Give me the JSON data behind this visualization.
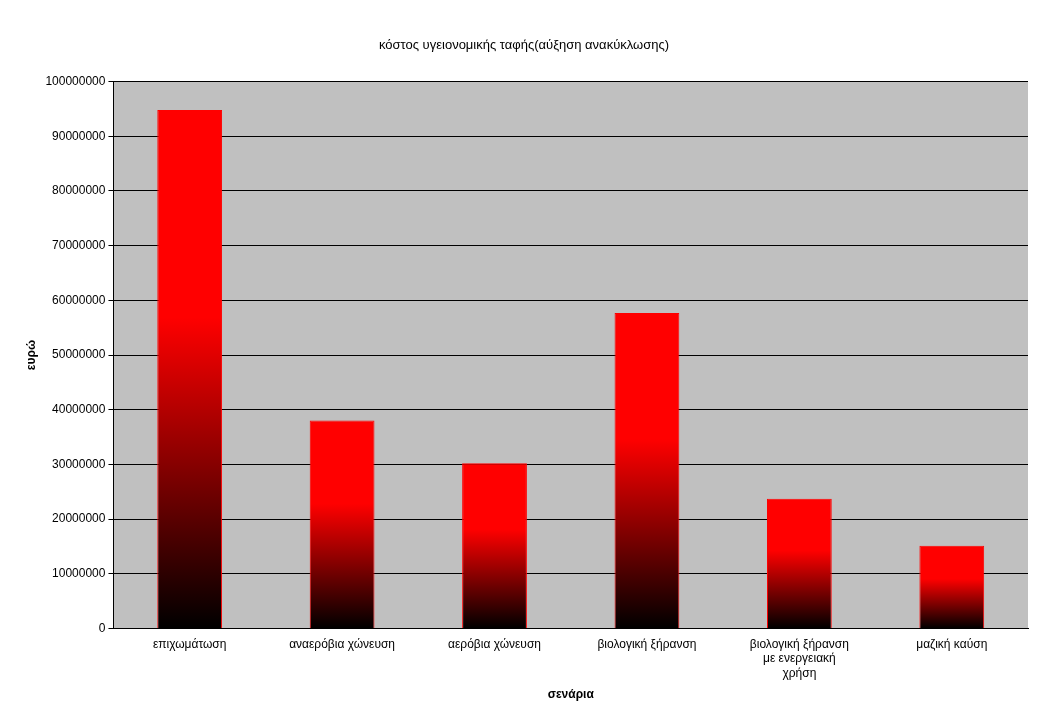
{
  "chart_data": {
    "type": "bar",
    "title": "κόστος υγειονομικής ταφής(αύξηση ανακύκλωσης)",
    "xlabel": "σενάρια",
    "ylabel": "ευρώ",
    "categories": [
      "επιχωμάτωση",
      "αναερόβια χώνευση",
      "αερόβια χώνευση",
      "βιολογική ξήρανση",
      "βιολογική ξήρανση με ενεργειακή χρήση",
      "μαζική καύση"
    ],
    "series": [
      {
        "color": "#ff0000",
        "values": [
          94800000,
          38000000,
          30200000,
          57700000,
          23700000,
          15100000
        ]
      }
    ],
    "ylim": [
      0,
      100000000
    ],
    "yticks": [
      0,
      10000000,
      20000000,
      30000000,
      40000000,
      50000000,
      60000000,
      70000000,
      80000000,
      90000000,
      100000000
    ],
    "grid": "y",
    "legend": false
  }
}
